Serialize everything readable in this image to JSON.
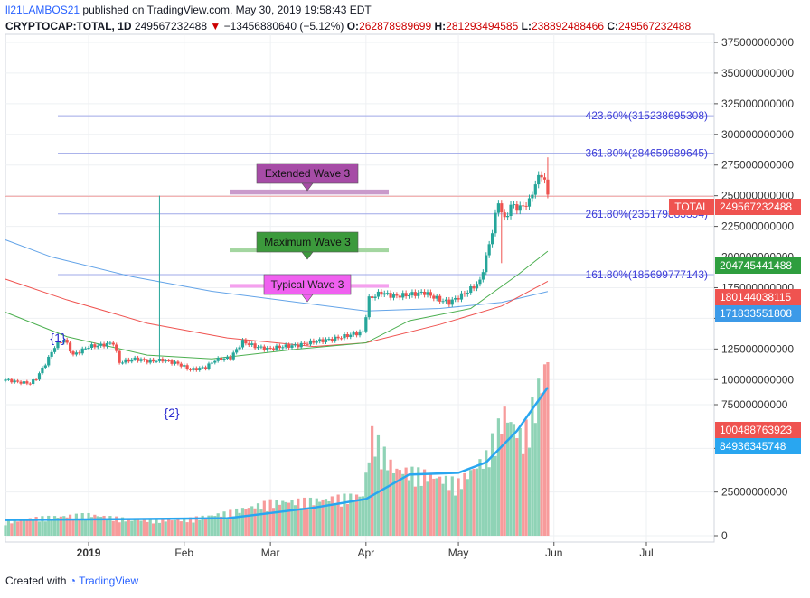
{
  "header": {
    "author": "ll21LAMBOS21",
    "published_text": "published on TradingView.com, May 30, 2019 19:58:43 EDT",
    "symbol": "CRYPTOCAP:TOTAL, 1D",
    "last": "249567232488",
    "change": "−13456880640 (−5.12%)",
    "open_label": "O:",
    "open": "262878989699",
    "high_label": "H:",
    "high": "281293494585",
    "low_label": "L:",
    "low": "238892488466",
    "close_label": "C:",
    "close": "249567232488"
  },
  "footer": {
    "created_with": "Created with",
    "brand": "TradingView"
  },
  "colors": {
    "up": "#26a69a",
    "down": "#ef5350",
    "vol_up": "#8fd3b6",
    "vol_down": "#f79b9b",
    "ma_blue": "#64a4e8",
    "ma_green": "#4caf50",
    "ma_red": "#ef5350",
    "fib": "#3b3bd8",
    "vol_ma": "#29a6f0"
  },
  "chart_data": {
    "type": "candlestick",
    "x_tick_labels": [
      "2019",
      "Feb",
      "Mar",
      "Apr",
      "May",
      "Jun",
      "Jul"
    ],
    "y_tick_labels": [
      "375000000000",
      "350000000000",
      "325000000000",
      "300000000000",
      "275000000000",
      "250000000000",
      "225000000000",
      "200000000000",
      "175000000000",
      "150000000000",
      "125000000000",
      "100000000000",
      "75000000000",
      "50000000000",
      "25000000000",
      "0"
    ],
    "price_ylim": [
      100000000000,
      375000000000
    ],
    "price_tick_values": [
      375000000000,
      350000000000,
      325000000000,
      300000000000,
      275000000000,
      250000000000,
      225000000000,
      200000000000,
      175000000000,
      150000000000,
      125000000000,
      100000000000
    ],
    "volume_tick_values": [
      75000000000,
      50000000000,
      25000000000,
      0
    ],
    "volume_ylim": [
      0,
      75000000000
    ],
    "price_anchors": [
      [
        "2018-12-05",
        100000000000
      ],
      [
        "2018-12-09",
        98000000000
      ],
      [
        "2018-12-13",
        97000000000
      ],
      [
        "2018-12-15",
        101000000000
      ],
      [
        "2018-12-18",
        113000000000
      ],
      [
        "2018-12-21",
        127000000000
      ],
      [
        "2018-12-24",
        133000000000
      ],
      [
        "2018-12-27",
        120000000000
      ],
      [
        "2019-01-01",
        127000000000
      ],
      [
        "2019-01-05",
        128000000000
      ],
      [
        "2019-01-09",
        130000000000
      ],
      [
        "2019-01-11",
        114000000000
      ],
      [
        "2019-01-16",
        117000000000
      ],
      [
        "2019-01-20",
        115000000000
      ],
      [
        "2019-01-25",
        116000000000
      ],
      [
        "2019-01-30",
        113000000000
      ],
      [
        "2019-02-03",
        108000000000
      ],
      [
        "2019-02-08",
        110000000000
      ],
      [
        "2019-02-11",
        116000000000
      ],
      [
        "2019-02-16",
        118000000000
      ],
      [
        "2019-02-20",
        131000000000
      ],
      [
        "2019-02-24",
        127000000000
      ],
      [
        "2019-02-28",
        125000000000
      ],
      [
        "2019-03-05",
        127000000000
      ],
      [
        "2019-03-10",
        128000000000
      ],
      [
        "2019-03-15",
        131000000000
      ],
      [
        "2019-03-21",
        133000000000
      ],
      [
        "2019-03-26",
        136000000000
      ],
      [
        "2019-03-31",
        139000000000
      ],
      [
        "2019-04-02",
        166000000000
      ],
      [
        "2019-04-06",
        171000000000
      ],
      [
        "2019-04-10",
        168000000000
      ],
      [
        "2019-04-14",
        169000000000
      ],
      [
        "2019-04-20",
        171000000000
      ],
      [
        "2019-04-25",
        165000000000
      ],
      [
        "2019-04-28",
        163000000000
      ],
      [
        "2019-05-03",
        170000000000
      ],
      [
        "2019-05-08",
        180000000000
      ],
      [
        "2019-05-11",
        210000000000
      ],
      [
        "2019-05-14",
        245000000000
      ],
      [
        "2019-05-16",
        230000000000
      ],
      [
        "2019-05-18",
        242000000000
      ],
      [
        "2019-05-21",
        240000000000
      ],
      [
        "2019-05-24",
        245000000000
      ],
      [
        "2019-05-26",
        260000000000
      ],
      [
        "2019-05-28",
        268000000000
      ],
      [
        "2019-05-29",
        262000000000
      ],
      [
        "2019-05-30",
        249567232488
      ]
    ],
    "price_spikes": [
      {
        "date": "2019-01-24",
        "high": 250000000000
      },
      {
        "date": "2019-05-15",
        "low": 195000000000
      },
      {
        "date": "2019-05-30",
        "high": 281293494585
      }
    ],
    "volume_anchors": [
      [
        "2018-12-05",
        8000000000
      ],
      [
        "2018-12-15",
        10000000000
      ],
      [
        "2019-01-01",
        12000000000
      ],
      [
        "2019-01-15",
        9000000000
      ],
      [
        "2019-02-01",
        9000000000
      ],
      [
        "2019-02-15",
        13000000000
      ],
      [
        "2019-03-01",
        19000000000
      ],
      [
        "2019-03-15",
        20000000000
      ],
      [
        "2019-03-31",
        23000000000
      ],
      [
        "2019-04-03",
        58000000000
      ],
      [
        "2019-04-10",
        38000000000
      ],
      [
        "2019-04-20",
        35000000000
      ],
      [
        "2019-05-01",
        30000000000
      ],
      [
        "2019-05-10",
        45000000000
      ],
      [
        "2019-05-16",
        70000000000
      ],
      [
        "2019-05-22",
        55000000000
      ],
      [
        "2019-05-30",
        100488763923
      ]
    ],
    "moving_averages": [
      {
        "color": "ma_blue",
        "points": [
          [
            "2018-12-05",
            214000000000
          ],
          [
            "2018-12-20",
            200000000000
          ],
          [
            "2019-01-15",
            184000000000
          ],
          [
            "2019-02-10",
            172000000000
          ],
          [
            "2019-03-10",
            163000000000
          ],
          [
            "2019-04-01",
            156000000000
          ],
          [
            "2019-04-25",
            158000000000
          ],
          [
            "2019-05-15",
            163000000000
          ],
          [
            "2019-05-30",
            171833551808
          ]
        ]
      },
      {
        "color": "ma_red",
        "points": [
          [
            "2018-12-05",
            182000000000
          ],
          [
            "2018-12-25",
            165000000000
          ],
          [
            "2019-01-20",
            146000000000
          ],
          [
            "2019-02-15",
            134000000000
          ],
          [
            "2019-03-15",
            127000000000
          ],
          [
            "2019-04-01",
            130000000000
          ],
          [
            "2019-04-25",
            145000000000
          ],
          [
            "2019-05-15",
            160000000000
          ],
          [
            "2019-05-30",
            180144038115
          ]
        ]
      },
      {
        "color": "ma_green",
        "points": [
          [
            "2018-12-05",
            155000000000
          ],
          [
            "2018-12-25",
            135000000000
          ],
          [
            "2019-01-20",
            120000000000
          ],
          [
            "2019-02-10",
            117000000000
          ],
          [
            "2019-03-10",
            125000000000
          ],
          [
            "2019-04-01",
            130000000000
          ],
          [
            "2019-04-15",
            148000000000
          ],
          [
            "2019-05-05",
            158000000000
          ],
          [
            "2019-05-20",
            185000000000
          ],
          [
            "2019-05-30",
            204745441488
          ]
        ]
      }
    ],
    "volume_ma": [
      [
        "2018-12-05",
        9000000000
      ],
      [
        "2019-01-15",
        9500000000
      ],
      [
        "2019-02-15",
        10000000000
      ],
      [
        "2019-03-15",
        16000000000
      ],
      [
        "2019-04-01",
        21000000000
      ],
      [
        "2019-04-15",
        35000000000
      ],
      [
        "2019-05-01",
        36000000000
      ],
      [
        "2019-05-10",
        42000000000
      ],
      [
        "2019-05-20",
        60000000000
      ],
      [
        "2019-05-30",
        84936345748
      ]
    ],
    "fib_levels": [
      {
        "label": "423.60%(315238695308)",
        "value": 315238695308
      },
      {
        "label": "361.80%(284659989645)",
        "value": 284659989645
      },
      {
        "label": "261.80%(235179883394)",
        "value": 235179883394
      },
      {
        "label": "161.80%(185699777143)",
        "value": 185699777143
      }
    ],
    "last_price_line": 249567232488,
    "price_badges": [
      {
        "label": "TOTAL",
        "color": "#ef5350"
      },
      {
        "value": "249567232488",
        "color": "#ef5350"
      },
      {
        "value": "204745441488",
        "color": "#2e9e3e"
      },
      {
        "value": "180144038115",
        "color": "#ef5350"
      },
      {
        "value": "171833551808",
        "color": "#3c9ae8"
      },
      {
        "value": "100488763923",
        "color": "#ef5350"
      },
      {
        "value": "84936345748",
        "color": "#29a6f0"
      }
    ],
    "annotations": [
      {
        "text": "Extended Wave 3",
        "fill": "#a64ca6"
      },
      {
        "text": "Maximum Wave 3",
        "fill": "#3c9a3c"
      },
      {
        "text": "Typical Wave 3",
        "fill": "#f060f0"
      },
      {
        "text": "{1}"
      },
      {
        "text": "{2}"
      }
    ],
    "bands": [
      {
        "low": 251000000000,
        "high": 255000000000,
        "fill": "#c99acb"
      },
      {
        "low": 204000000000,
        "high": 207000000000,
        "fill": "#a3d6a0"
      },
      {
        "low": 175000000000,
        "high": 178000000000,
        "fill": "#f5a0ee"
      }
    ],
    "grid": true
  }
}
